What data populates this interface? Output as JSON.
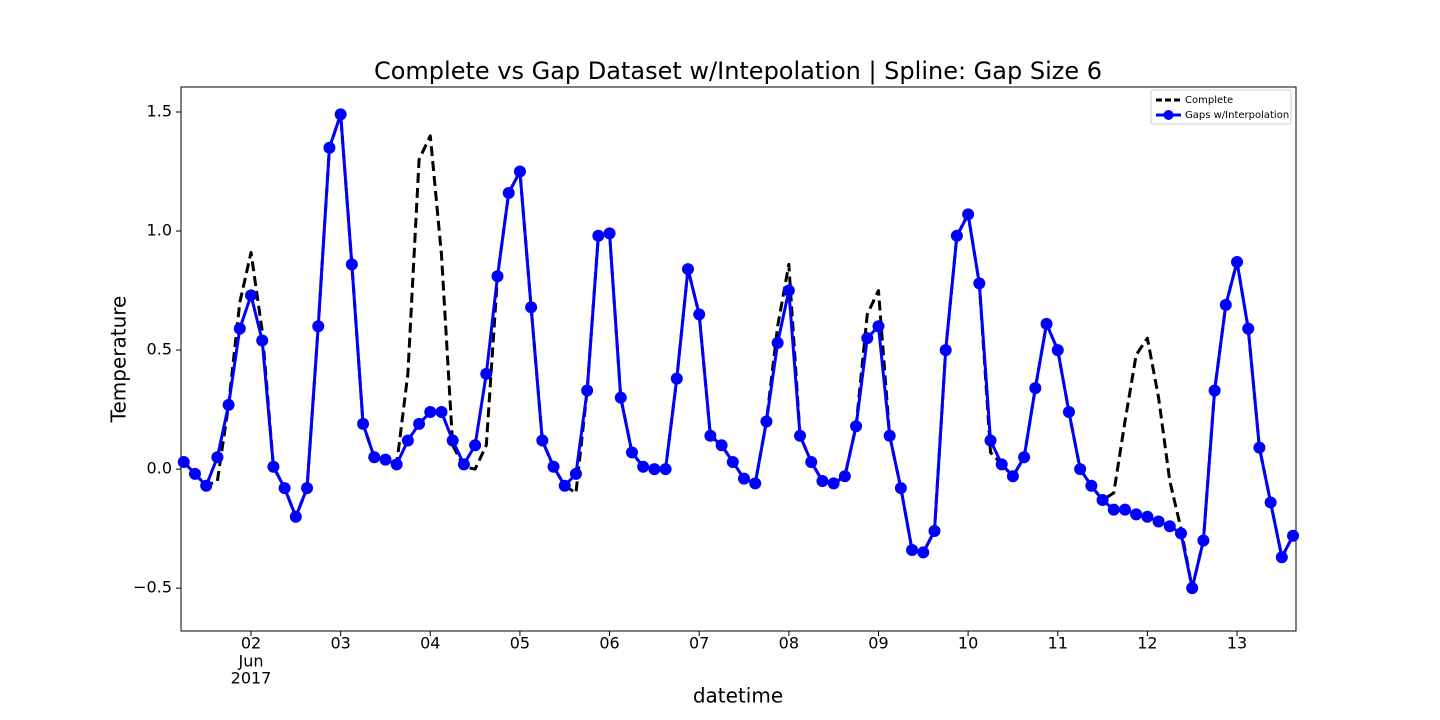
{
  "chart_data": {
    "type": "line",
    "title": "Complete vs Gap Dataset w/Intepolation | Spline: Gap Size 6",
    "x_label": "datetime",
    "y_label": "Temperature",
    "x": [
      1.25,
      1.375,
      1.5,
      1.625,
      1.75,
      1.875,
      2.0,
      2.125,
      2.25,
      2.375,
      2.5,
      2.625,
      2.75,
      2.875,
      3.0,
      3.125,
      3.25,
      3.375,
      3.5,
      3.625,
      3.75,
      3.875,
      4.0,
      4.125,
      4.25,
      4.375,
      4.5,
      4.625,
      4.75,
      4.875,
      5.0,
      5.125,
      5.25,
      5.375,
      5.5,
      5.625,
      5.75,
      5.875,
      6.0,
      6.125,
      6.25,
      6.375,
      6.5,
      6.625,
      6.75,
      6.875,
      7.0,
      7.125,
      7.25,
      7.375,
      7.5,
      7.625,
      7.75,
      7.875,
      8.0,
      8.125,
      8.25,
      8.375,
      8.5,
      8.625,
      8.75,
      8.875,
      9.0,
      9.125,
      9.25,
      9.375,
      9.5,
      9.625,
      9.75,
      9.875,
      10.0,
      10.125,
      10.25,
      10.375,
      10.5,
      10.625,
      10.75,
      10.875,
      11.0,
      11.125,
      11.25,
      11.375,
      11.5,
      11.625,
      11.75,
      11.875,
      12.0,
      12.125,
      12.25,
      12.375,
      12.5,
      12.625,
      12.75,
      12.875,
      13.0,
      13.125,
      13.25,
      13.375,
      13.5,
      13.625
    ],
    "series": [
      {
        "name": "Complete",
        "color": "#000000",
        "style": "dashed",
        "values": [
          0.03,
          -0.02,
          -0.07,
          -0.05,
          0.27,
          0.7,
          0.91,
          0.58,
          0.01,
          -0.08,
          -0.2,
          -0.08,
          0.6,
          1.35,
          1.49,
          0.86,
          0.19,
          0.05,
          0.04,
          0.02,
          0.4,
          1.3,
          1.4,
          0.9,
          0.1,
          0.01,
          0.0,
          0.1,
          0.81,
          1.16,
          1.25,
          0.68,
          0.12,
          0.01,
          -0.07,
          -0.1,
          0.33,
          0.98,
          0.99,
          0.3,
          0.07,
          0.01,
          0.0,
          0.0,
          0.38,
          0.84,
          0.65,
          0.14,
          0.1,
          0.03,
          -0.04,
          -0.06,
          0.2,
          0.6,
          0.86,
          0.14,
          0.03,
          -0.05,
          -0.06,
          -0.03,
          0.18,
          0.65,
          0.75,
          0.14,
          -0.08,
          -0.34,
          -0.35,
          -0.26,
          0.5,
          0.98,
          1.07,
          0.78,
          0.07,
          0.02,
          -0.03,
          0.05,
          0.34,
          0.61,
          0.5,
          0.24,
          0.0,
          -0.07,
          -0.13,
          -0.1,
          0.2,
          0.48,
          0.55,
          0.3,
          -0.05,
          -0.25,
          -0.5,
          -0.3,
          0.33,
          0.69,
          0.87,
          0.59,
          0.09,
          -0.14,
          -0.37,
          -0.28
        ]
      },
      {
        "name": "Gaps w/Interpolation",
        "color": "#0000ff",
        "style": "markers",
        "values": [
          0.03,
          -0.02,
          -0.07,
          0.05,
          0.27,
          0.59,
          0.73,
          0.54,
          0.01,
          -0.08,
          -0.2,
          -0.08,
          0.6,
          1.35,
          1.49,
          0.86,
          0.19,
          0.05,
          0.04,
          0.02,
          0.12,
          0.19,
          0.24,
          0.24,
          0.12,
          0.02,
          0.1,
          0.4,
          0.81,
          1.16,
          1.25,
          0.68,
          0.12,
          0.01,
          -0.07,
          -0.02,
          0.33,
          0.98,
          0.99,
          0.3,
          0.07,
          0.01,
          0.0,
          0.0,
          0.38,
          0.84,
          0.65,
          0.14,
          0.1,
          0.03,
          -0.04,
          -0.06,
          0.2,
          0.53,
          0.75,
          0.14,
          0.03,
          -0.05,
          -0.06,
          -0.03,
          0.18,
          0.55,
          0.6,
          0.14,
          -0.08,
          -0.34,
          -0.35,
          -0.26,
          0.5,
          0.98,
          1.07,
          0.78,
          0.12,
          0.02,
          -0.03,
          0.05,
          0.34,
          0.61,
          0.5,
          0.24,
          0.0,
          -0.07,
          -0.13,
          -0.17,
          -0.17,
          -0.19,
          -0.2,
          -0.22,
          -0.24,
          -0.27,
          -0.5,
          -0.3,
          0.33,
          0.69,
          0.87,
          0.59,
          0.09,
          -0.14,
          -0.37,
          -0.28
        ]
      }
    ],
    "xlim": [
      1.219,
      13.658
    ],
    "xticks": [
      {
        "value": 2,
        "label": "02"
      },
      {
        "value": 3,
        "label": "03"
      },
      {
        "value": 4,
        "label": "04"
      },
      {
        "value": 5,
        "label": "05"
      },
      {
        "value": 6,
        "label": "06"
      },
      {
        "value": 7,
        "label": "07"
      },
      {
        "value": 8,
        "label": "08"
      },
      {
        "value": 9,
        "label": "09"
      },
      {
        "value": 10,
        "label": "10"
      },
      {
        "value": 11,
        "label": "11"
      },
      {
        "value": 12,
        "label": "12"
      },
      {
        "value": 13,
        "label": "13"
      }
    ],
    "x_tick_sublabels": [
      "Jun",
      "2017"
    ],
    "ylim": [
      -0.68,
      1.605
    ],
    "yticks": [
      {
        "value": -0.5,
        "label": "−0.5"
      },
      {
        "value": 0,
        "label": "0.0"
      },
      {
        "value": 0.5,
        "label": "0.5"
      },
      {
        "value": 1.0,
        "label": "1.0"
      },
      {
        "value": 1.5,
        "label": "1.5"
      }
    ],
    "grid": false,
    "legend": "upper right"
  }
}
